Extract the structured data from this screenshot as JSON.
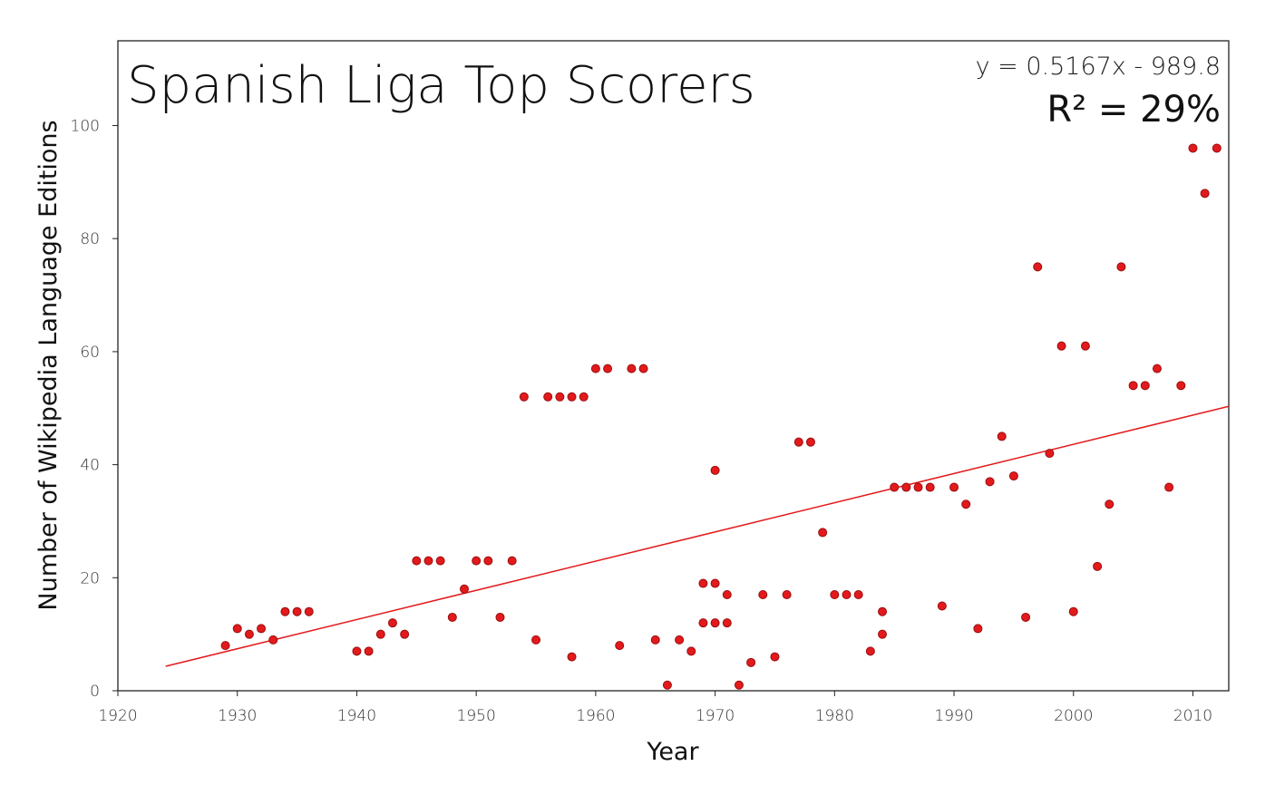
{
  "chart_data": {
    "type": "scatter",
    "title": "Spanish Liga Top Scorers",
    "xlabel": "Year",
    "ylabel": "Number of Wikipedia Language Editions",
    "equation": "y = 0.5167x - 989.8",
    "r_squared": "R² = 29%",
    "xlim": [
      1920,
      2013
    ],
    "ylim": [
      0,
      115
    ],
    "xticks": [
      "1920",
      "1930",
      "1940",
      "1950",
      "1960",
      "1970",
      "1980",
      "1990",
      "2000",
      "2010"
    ],
    "yticks": [
      "0",
      "20",
      "40",
      "60",
      "80",
      "100"
    ],
    "grid": false,
    "marker_color": "#e31a1c",
    "trendline_color": "#e31a1c",
    "trendline": {
      "slope": 0.5167,
      "intercept": -989.8,
      "x_start": 1924,
      "x_end": 2013
    },
    "points": [
      [
        1929,
        8
      ],
      [
        1930,
        11
      ],
      [
        1931,
        10
      ],
      [
        1932,
        11
      ],
      [
        1933,
        9
      ],
      [
        1934,
        14
      ],
      [
        1935,
        14
      ],
      [
        1936,
        14
      ],
      [
        1940,
        7
      ],
      [
        1941,
        7
      ],
      [
        1942,
        10
      ],
      [
        1943,
        12
      ],
      [
        1944,
        10
      ],
      [
        1945,
        23
      ],
      [
        1946,
        23
      ],
      [
        1947,
        23
      ],
      [
        1948,
        13
      ],
      [
        1949,
        18
      ],
      [
        1950,
        23
      ],
      [
        1951,
        23
      ],
      [
        1952,
        13
      ],
      [
        1953,
        23
      ],
      [
        1954,
        52
      ],
      [
        1955,
        9
      ],
      [
        1956,
        52
      ],
      [
        1957,
        52
      ],
      [
        1958,
        52
      ],
      [
        1958,
        6
      ],
      [
        1959,
        52
      ],
      [
        1960,
        57
      ],
      [
        1961,
        57
      ],
      [
        1962,
        8
      ],
      [
        1963,
        57
      ],
      [
        1964,
        57
      ],
      [
        1965,
        9
      ],
      [
        1966,
        1
      ],
      [
        1967,
        9
      ],
      [
        1968,
        7
      ],
      [
        1969,
        19
      ],
      [
        1969,
        12
      ],
      [
        1970,
        39
      ],
      [
        1970,
        19
      ],
      [
        1970,
        12
      ],
      [
        1971,
        17
      ],
      [
        1971,
        12
      ],
      [
        1972,
        1
      ],
      [
        1973,
        5
      ],
      [
        1974,
        17
      ],
      [
        1975,
        6
      ],
      [
        1976,
        17
      ],
      [
        1977,
        44
      ],
      [
        1978,
        44
      ],
      [
        1979,
        28
      ],
      [
        1980,
        17
      ],
      [
        1981,
        17
      ],
      [
        1982,
        17
      ],
      [
        1983,
        7
      ],
      [
        1984,
        14
      ],
      [
        1984,
        10
      ],
      [
        1985,
        36
      ],
      [
        1986,
        36
      ],
      [
        1987,
        36
      ],
      [
        1988,
        36
      ],
      [
        1989,
        15
      ],
      [
        1990,
        36
      ],
      [
        1991,
        33
      ],
      [
        1992,
        11
      ],
      [
        1993,
        37
      ],
      [
        1994,
        45
      ],
      [
        1995,
        38
      ],
      [
        1996,
        13
      ],
      [
        1997,
        75
      ],
      [
        1998,
        42
      ],
      [
        1999,
        61
      ],
      [
        2000,
        14
      ],
      [
        2001,
        61
      ],
      [
        2002,
        22
      ],
      [
        2003,
        33
      ],
      [
        2004,
        75
      ],
      [
        2005,
        54
      ],
      [
        2006,
        54
      ],
      [
        2007,
        57
      ],
      [
        2008,
        36
      ],
      [
        2009,
        54
      ],
      [
        2010,
        96
      ],
      [
        2011,
        88
      ],
      [
        2012,
        96
      ]
    ]
  }
}
